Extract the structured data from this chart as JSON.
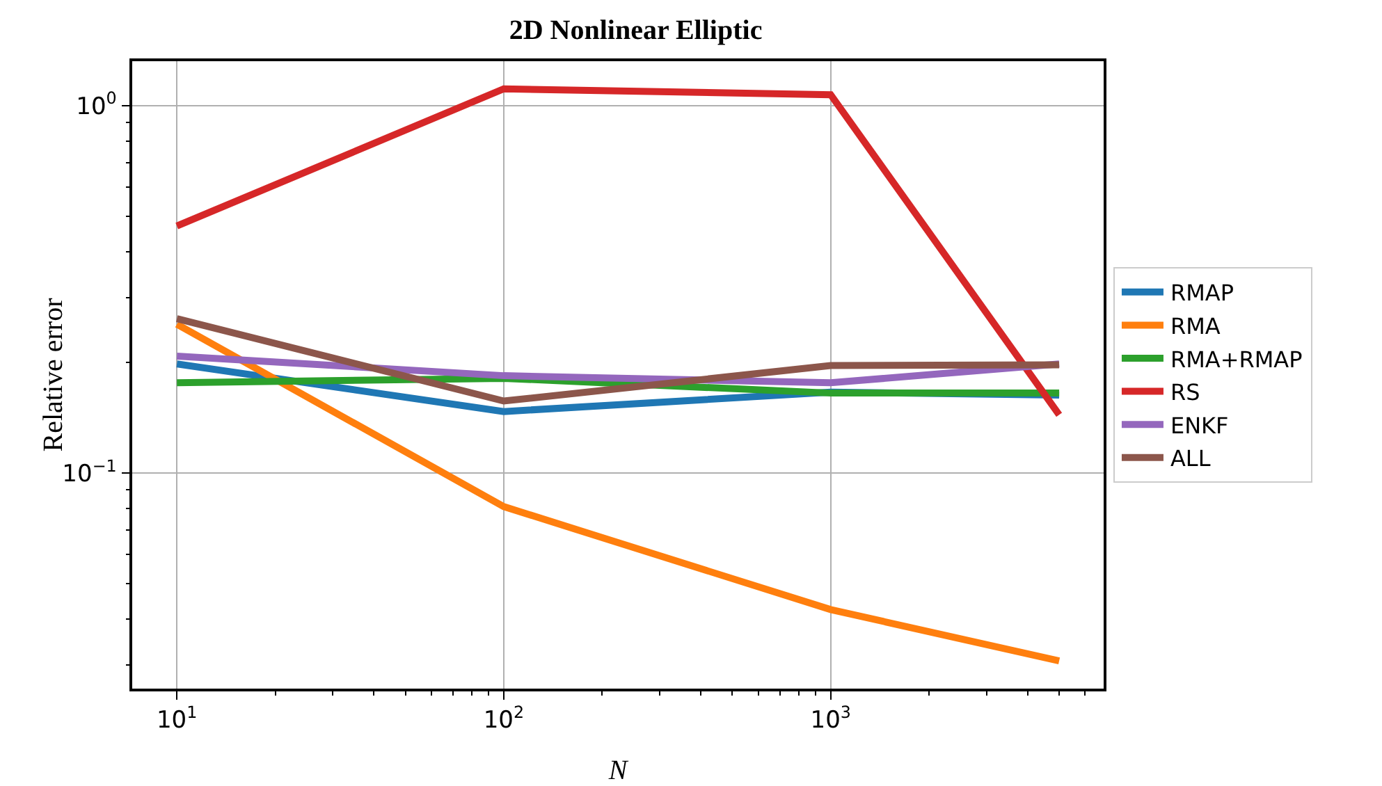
{
  "chart_data": {
    "type": "line",
    "title": "2D Nonlinear Elliptic",
    "xlabel": "N",
    "ylabel": "Relative error",
    "log": "xy",
    "grid": true,
    "legend": "right",
    "marker": "none",
    "line_style": "solid",
    "x": [
      10,
      100,
      1000,
      5000
    ],
    "xlim": [
      7.3,
      6840
    ],
    "xticks": [
      {
        "value": 10,
        "label": "10$^{1}$"
      },
      {
        "value": 100,
        "label": "10$^{2}$"
      },
      {
        "value": 1000,
        "label": "10$^{3}$"
      },
      {
        "value": 20,
        "label": null
      },
      {
        "value": 30,
        "label": null
      },
      {
        "value": 40,
        "label": null
      },
      {
        "value": 50,
        "label": null
      },
      {
        "value": 60,
        "label": null
      },
      {
        "value": 70,
        "label": null
      },
      {
        "value": 80,
        "label": null
      },
      {
        "value": 90,
        "label": null
      },
      {
        "value": 200,
        "label": null
      },
      {
        "value": 300,
        "label": null
      },
      {
        "value": 400,
        "label": null
      },
      {
        "value": 500,
        "label": null
      },
      {
        "value": 600,
        "label": null
      },
      {
        "value": 700,
        "label": null
      },
      {
        "value": 800,
        "label": null
      },
      {
        "value": 900,
        "label": null
      },
      {
        "value": 2000,
        "label": null
      },
      {
        "value": 3000,
        "label": null
      },
      {
        "value": 4000,
        "label": null
      },
      {
        "value": 5000,
        "label": null
      },
      {
        "value": 6000,
        "label": null
      }
    ],
    "ylim": [
      0.0259,
      1.32
    ],
    "yticks": [
      {
        "value": 0.1,
        "label": "10$^{−1}$"
      },
      {
        "value": 1,
        "label": "10$^{0}$"
      },
      {
        "value": 0.03,
        "label": null
      },
      {
        "value": 0.04,
        "label": null
      },
      {
        "value": 0.05,
        "label": null
      },
      {
        "value": 0.06,
        "label": null
      },
      {
        "value": 0.07,
        "label": null
      },
      {
        "value": 0.08,
        "label": null
      },
      {
        "value": 0.09,
        "label": null
      },
      {
        "value": 0.2,
        "label": null
      },
      {
        "value": 0.3,
        "label": null
      },
      {
        "value": 0.4,
        "label": null
      },
      {
        "value": 0.5,
        "label": null
      },
      {
        "value": 0.6,
        "label": null
      },
      {
        "value": 0.7,
        "label": null
      },
      {
        "value": 0.8,
        "label": null
      },
      {
        "value": 0.9,
        "label": null
      }
    ],
    "series": [
      {
        "name": "RMAP",
        "color": "#1f77b4",
        "values": [
          0.198,
          0.147,
          0.166,
          0.163
        ]
      },
      {
        "name": "RMA",
        "color": "#ff7f0e",
        "values": [
          0.254,
          0.081,
          0.0425,
          0.0308
        ]
      },
      {
        "name": "RMA+RMAP",
        "color": "#2ca02c",
        "values": [
          0.176,
          0.181,
          0.165,
          0.165
        ]
      },
      {
        "name": "RS",
        "color": "#d62728",
        "values": [
          0.47,
          1.11,
          1.07,
          0.144
        ]
      },
      {
        "name": "ENKF",
        "color": "#9467bd",
        "values": [
          0.208,
          0.184,
          0.176,
          0.198
        ]
      },
      {
        "name": "ALL",
        "color": "#8c564b",
        "values": [
          0.263,
          0.157,
          0.196,
          0.197
        ]
      }
    ]
  }
}
